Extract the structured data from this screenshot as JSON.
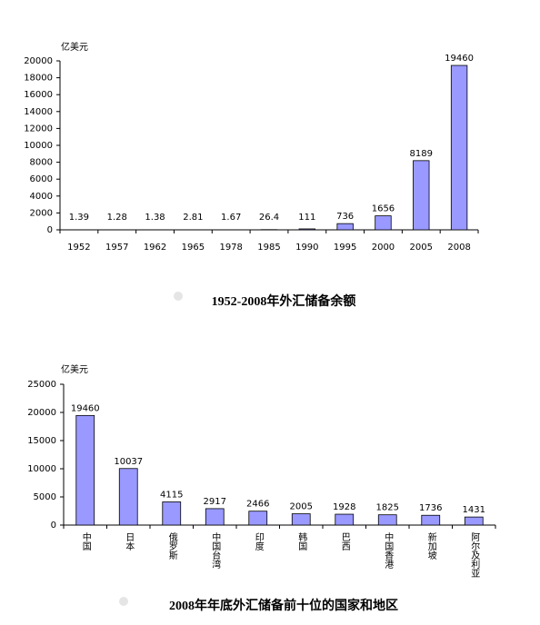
{
  "chart_data": [
    {
      "type": "bar",
      "title": "1952-2008年外汇储备余额",
      "y_label": "亿美元",
      "categories": [
        "1952",
        "1957",
        "1962",
        "1965",
        "1978",
        "1985",
        "1990",
        "1995",
        "2000",
        "2005",
        "2008"
      ],
      "values": [
        1.39,
        1.28,
        1.38,
        2.81,
        1.67,
        26.4,
        111,
        736,
        1656,
        8189,
        19460
      ],
      "color": "#9999ff",
      "ylim": [
        0,
        20000
      ],
      "yticks": [
        0,
        2000,
        4000,
        6000,
        8000,
        10000,
        12000,
        14000,
        16000,
        18000,
        20000
      ]
    },
    {
      "type": "bar",
      "title": "2008年年底外汇储备前十位的国家和地区",
      "y_label": "亿美元",
      "categories": [
        "中国",
        "日本",
        "俄罗斯",
        "中国台湾",
        "印度",
        "韩国",
        "巴西",
        "中国香港",
        "新加坡",
        "阿尔及利亚"
      ],
      "values": [
        19460,
        10037,
        4115,
        2917,
        2466,
        2005,
        1928,
        1825,
        1736,
        1431
      ],
      "color": "#9999ff",
      "ylim": [
        0,
        25000
      ],
      "yticks": [
        0,
        5000,
        10000,
        15000,
        20000,
        25000
      ]
    }
  ]
}
